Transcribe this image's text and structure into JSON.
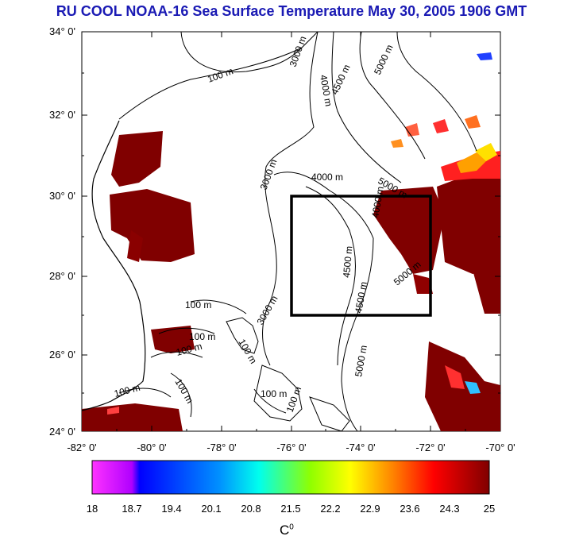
{
  "title": "RU COOL  NOAA-16 Sea Surface Temperature May 30, 2005 1906 GMT",
  "lat_labels": [
    "34° 0'",
    "32° 0'",
    "30° 0'",
    "28° 0'",
    "26° 0'",
    "24° 0'"
  ],
  "lon_labels": [
    "-82° 0'",
    "-80° 0'",
    "-78° 0'",
    "-76° 0'",
    "-74° 0'",
    "-72° 0'",
    "-70° 0'"
  ],
  "contour_labels": [
    "100 m",
    "3000 m",
    "4000 m",
    "4500 m",
    "5000 m"
  ],
  "colorbar": {
    "ticks": [
      "18",
      "18.7",
      "19.4",
      "20.1",
      "20.8",
      "21.5",
      "22.2",
      "22.9",
      "23.6",
      "24.3",
      "25"
    ],
    "unit_base": "C",
    "unit_sup": "0",
    "colors": [
      "#ff33ff",
      "#0000ff",
      "#00ffff",
      "#ffff00",
      "#ff0000",
      "#800000"
    ]
  },
  "study_box": {
    "lon_min": -76,
    "lon_max": -72,
    "lat_min": 27,
    "lat_max": 30
  }
}
